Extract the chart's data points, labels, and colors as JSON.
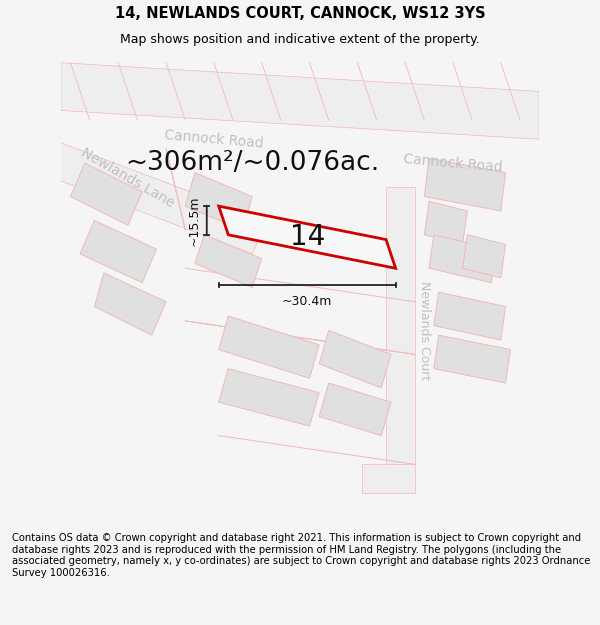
{
  "title_line1": "14, NEWLANDS COURT, CANNOCK, WS12 3YS",
  "title_line2": "Map shows position and indicative extent of the property.",
  "area_text": "~306m²/~0.076ac.",
  "label_number": "14",
  "dim_width": "~30.4m",
  "dim_height": "~15.5m",
  "road_label_nl": "Newlands Lane",
  "road_label_cr1": "Cannock Road",
  "road_label_cr2": "Cannock Road",
  "road_label_nc": "Newlands Court",
  "footer_text": "Contains OS data © Crown copyright and database right 2021. This information is subject to Crown copyright and database rights 2023 and is reproduced with the permission of HM Land Registry. The polygons (including the associated geometry, namely x, y co-ordinates) are subject to Crown copyright and database rights 2023 Ordnance Survey 100026316.",
  "bg_color": "#f5f5f5",
  "map_bg": "#ffffff",
  "light_red": "#f2b8b8",
  "dark_red": "#cc0000",
  "block_fill": "#e0e0e0",
  "block_edge": "#f2b8b8",
  "road_fill": "#eeeeee",
  "title_fontsize": 10.5,
  "subtitle_fontsize": 9,
  "area_fontsize": 19,
  "label_fontsize": 20,
  "road_fontsize": 10,
  "footer_fontsize": 7.2
}
